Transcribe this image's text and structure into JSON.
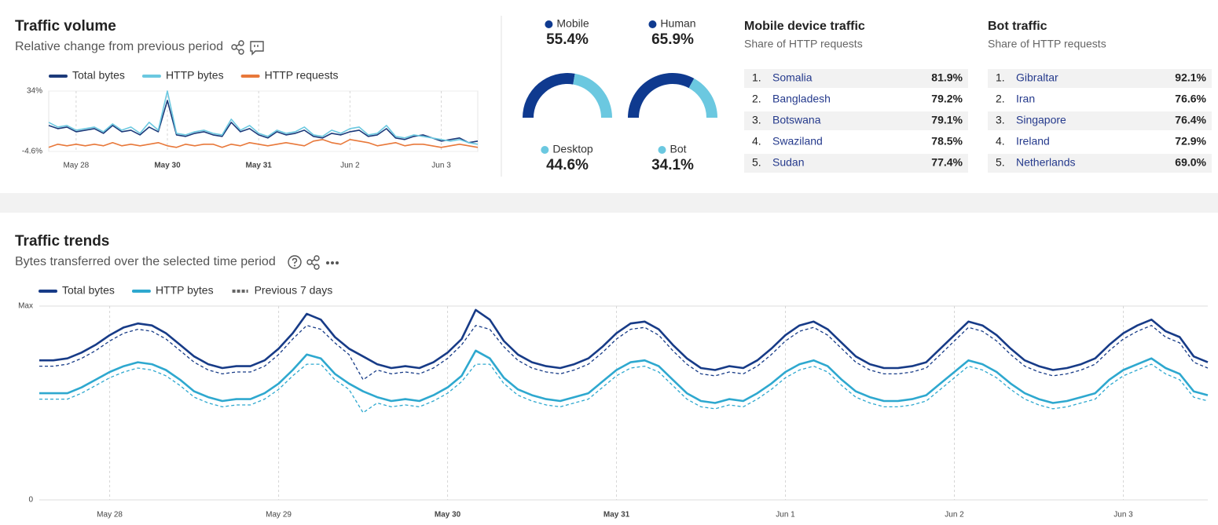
{
  "traffic_volume": {
    "title": "Traffic volume",
    "subtitle": "Relative change from previous period",
    "chart": {
      "type": "line",
      "series": [
        {
          "name": "Total bytes",
          "color": "#1c3a7a",
          "values": [
            12,
            10,
            11,
            8,
            9,
            10,
            7,
            12,
            8,
            9,
            6,
            11,
            8,
            28,
            6,
            5,
            7,
            8,
            6,
            5,
            14,
            8,
            10,
            6,
            4,
            8,
            6,
            7,
            9,
            5,
            4,
            7,
            6,
            8,
            9,
            5,
            6,
            10,
            4,
            3,
            5,
            6,
            4,
            2,
            3,
            4,
            1,
            2
          ]
        },
        {
          "name": "HTTP bytes",
          "color": "#6bc8e0",
          "values": [
            14,
            11,
            12,
            9,
            10,
            11,
            8,
            13,
            9,
            11,
            7,
            14,
            9,
            34,
            7,
            6,
            8,
            9,
            7,
            6,
            16,
            9,
            12,
            7,
            5,
            9,
            7,
            8,
            11,
            6,
            5,
            9,
            7,
            10,
            11,
            6,
            7,
            12,
            5,
            4,
            6,
            5,
            4,
            3,
            2,
            3,
            1,
            0
          ]
        },
        {
          "name": "HTTP requests",
          "color": "#e8783a",
          "values": [
            -2,
            0,
            -1,
            0,
            -1,
            0,
            -1,
            1,
            -1,
            0,
            -1,
            0,
            1,
            -1,
            -2,
            0,
            -1,
            0,
            0,
            -2,
            0,
            -1,
            1,
            0,
            -1,
            0,
            1,
            0,
            -1,
            2,
            3,
            1,
            0,
            3,
            2,
            1,
            -1,
            0,
            1,
            -1,
            0,
            0,
            -1,
            -2,
            -1,
            0,
            -1,
            -2
          ]
        }
      ],
      "xlim": [
        0,
        47
      ],
      "xticks": [
        {
          "value": 3,
          "label": "May 28"
        },
        {
          "value": 13,
          "label": "May 30",
          "bold": true
        },
        {
          "value": 23,
          "label": "May 31",
          "bold": true
        },
        {
          "value": 33,
          "label": "Jun 2"
        },
        {
          "value": 43,
          "label": "Jun 3"
        }
      ],
      "ylim": [
        -4.6,
        34
      ],
      "yticks": [
        {
          "value": 34,
          "label": "34%"
        },
        {
          "value": -4.6,
          "label": "-4.6%"
        }
      ]
    }
  },
  "gauges": [
    {
      "type": "pie",
      "slices": [
        {
          "label": "Mobile",
          "value": 55.4,
          "value_label": "55.4%",
          "color": "#0f3a8f"
        },
        {
          "label": "Desktop",
          "value": 44.6,
          "value_label": "44.6%",
          "color": "#6bc8e0"
        }
      ]
    },
    {
      "type": "pie",
      "slices": [
        {
          "label": "Human",
          "value": 65.9,
          "value_label": "65.9%",
          "color": "#0f3a8f"
        },
        {
          "label": "Bot",
          "value": 34.1,
          "value_label": "34.1%",
          "color": "#6bc8e0"
        }
      ]
    }
  ],
  "tables": [
    {
      "title": "Mobile device traffic",
      "subtitle": "Share of HTTP requests",
      "rows": [
        [
          "1.",
          "Somalia",
          "81.9%"
        ],
        [
          "2.",
          "Bangladesh",
          "79.2%"
        ],
        [
          "3.",
          "Botswana",
          "79.1%"
        ],
        [
          "4.",
          "Swaziland",
          "78.5%"
        ],
        [
          "5.",
          "Sudan",
          "77.4%"
        ]
      ]
    },
    {
      "title": "Bot traffic",
      "subtitle": "Share of HTTP requests",
      "rows": [
        [
          "1.",
          "Gibraltar",
          "92.1%"
        ],
        [
          "2.",
          "Iran",
          "76.6%"
        ],
        [
          "3.",
          "Singapore",
          "76.4%"
        ],
        [
          "4.",
          "Ireland",
          "72.9%"
        ],
        [
          "5.",
          "Netherlands",
          "69.0%"
        ]
      ]
    }
  ],
  "traffic_trends": {
    "title": "Traffic trends",
    "subtitle": "Bytes transferred over the selected time period",
    "chart": {
      "type": "line",
      "series": [
        {
          "name": "Total bytes",
          "color": "#173b87",
          "values": [
            72,
            72,
            73,
            76,
            80,
            85,
            89,
            91,
            90,
            86,
            80,
            74,
            70,
            68,
            69,
            69,
            72,
            78,
            86,
            96,
            93,
            84,
            78,
            74,
            70,
            68,
            69,
            68,
            71,
            76,
            83,
            98,
            93,
            82,
            75,
            71,
            69,
            68,
            70,
            73,
            79,
            86,
            91,
            92,
            88,
            80,
            73,
            68,
            67,
            69,
            68,
            72,
            78,
            85,
            90,
            92,
            88,
            81,
            74,
            70,
            68,
            68,
            69,
            71,
            78,
            85,
            92,
            90,
            85,
            78,
            72,
            69,
            67,
            68,
            70,
            73,
            80,
            86,
            90,
            93,
            87,
            84,
            74,
            71
          ]
        },
        {
          "name": "HTTP bytes",
          "color": "#2ea8cf",
          "values": [
            55,
            55,
            55,
            58,
            62,
            66,
            69,
            71,
            70,
            67,
            62,
            56,
            53,
            51,
            52,
            52,
            55,
            60,
            67,
            75,
            73,
            65,
            60,
            56,
            53,
            51,
            52,
            51,
            54,
            58,
            64,
            77,
            73,
            63,
            57,
            54,
            52,
            51,
            53,
            55,
            61,
            67,
            71,
            72,
            69,
            62,
            55,
            51,
            50,
            52,
            51,
            55,
            60,
            66,
            70,
            72,
            69,
            62,
            56,
            53,
            51,
            51,
            52,
            54,
            60,
            66,
            72,
            70,
            66,
            60,
            55,
            52,
            50,
            51,
            53,
            55,
            62,
            67,
            70,
            73,
            68,
            65,
            56,
            54
          ]
        }
      ],
      "previous": {
        "name": "Previous 7 days",
        "color": "#666666",
        "total": [
          69,
          69,
          70,
          73,
          77,
          82,
          86,
          88,
          87,
          83,
          77,
          71,
          67,
          65,
          66,
          66,
          69,
          75,
          83,
          90,
          88,
          81,
          75,
          62,
          67,
          65,
          66,
          65,
          68,
          73,
          80,
          90,
          88,
          79,
          72,
          68,
          66,
          65,
          67,
          70,
          76,
          83,
          88,
          89,
          85,
          77,
          70,
          65,
          64,
          66,
          65,
          69,
          75,
          82,
          87,
          89,
          85,
          78,
          71,
          67,
          65,
          65,
          66,
          68,
          75,
          82,
          89,
          87,
          82,
          75,
          69,
          66,
          64,
          65,
          67,
          70,
          77,
          83,
          87,
          90,
          84,
          81,
          71,
          68
        ],
        "http": [
          52,
          52,
          52,
          55,
          59,
          63,
          66,
          68,
          67,
          64,
          59,
          53,
          50,
          48,
          49,
          49,
          52,
          57,
          64,
          70,
          70,
          62,
          57,
          45,
          50,
          48,
          49,
          48,
          51,
          55,
          61,
          70,
          70,
          60,
          54,
          51,
          49,
          48,
          50,
          52,
          58,
          64,
          68,
          69,
          66,
          59,
          52,
          48,
          47,
          49,
          48,
          52,
          57,
          63,
          67,
          69,
          66,
          59,
          53,
          50,
          48,
          48,
          49,
          51,
          57,
          63,
          69,
          67,
          63,
          57,
          52,
          49,
          47,
          48,
          50,
          52,
          59,
          64,
          67,
          70,
          65,
          62,
          53,
          51
        ]
      },
      "xlim": [
        0,
        83
      ],
      "xticks": [
        {
          "value": 5,
          "label": "May 28"
        },
        {
          "value": 17,
          "label": "May 29"
        },
        {
          "value": 29,
          "label": "May 30",
          "bold": true
        },
        {
          "value": 41,
          "label": "May 31",
          "bold": true
        },
        {
          "value": 53,
          "label": "Jun 1"
        },
        {
          "value": 65,
          "label": "Jun 2"
        },
        {
          "value": 77,
          "label": "Jun 3"
        }
      ],
      "ylim": [
        0,
        100
      ],
      "yticks": [
        0,
        {
          "value": 100,
          "label": "Max"
        }
      ]
    }
  }
}
